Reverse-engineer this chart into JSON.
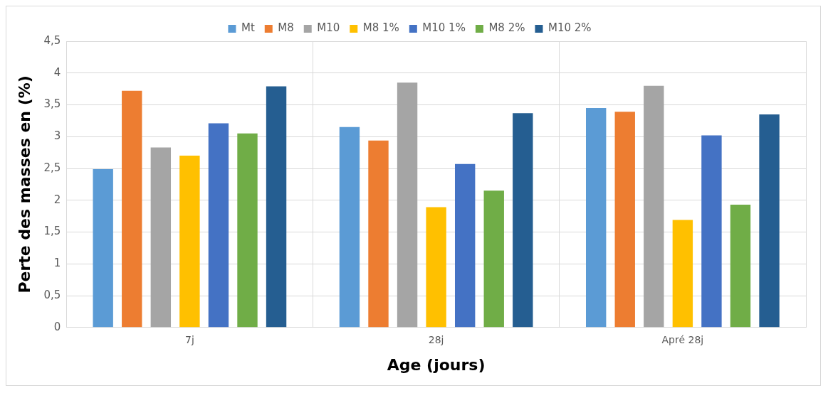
{
  "chart_data": {
    "type": "bar",
    "xlabel": "Age (jours)",
    "ylabel": "Perte des masses en (%)",
    "categories": [
      "7j",
      "28j",
      "Apré 28j"
    ],
    "series": [
      {
        "name": "Mt",
        "color": "#5b9bd5",
        "values": [
          2.49,
          3.15,
          3.45
        ]
      },
      {
        "name": "M8",
        "color": "#ed7d31",
        "values": [
          3.72,
          2.94,
          3.39
        ]
      },
      {
        "name": "M10",
        "color": "#a5a5a5",
        "values": [
          2.83,
          3.85,
          3.8
        ]
      },
      {
        "name": "M8 1%",
        "color": "#ffc000",
        "values": [
          2.7,
          1.89,
          1.69
        ]
      },
      {
        "name": "M10 1%",
        "color": "#4472c4",
        "values": [
          3.21,
          2.57,
          3.02
        ]
      },
      {
        "name": "M8 2%",
        "color": "#70ad47",
        "values": [
          3.05,
          2.15,
          1.93
        ]
      },
      {
        "name": "M10 2%",
        "color": "#255e91",
        "values": [
          3.79,
          3.37,
          3.35
        ]
      }
    ],
    "ylim": [
      0,
      4.5
    ],
    "yticks": [
      0,
      {
        "value": 0.5,
        "label": "0,5"
      },
      1,
      {
        "value": 1.5,
        "label": "1,5"
      },
      2,
      {
        "value": 2.5,
        "label": "2,5"
      },
      3,
      {
        "value": 3.5,
        "label": "3,5"
      },
      4,
      {
        "value": 4.5,
        "label": "4,5"
      }
    ],
    "grid": true,
    "legend": "top"
  }
}
